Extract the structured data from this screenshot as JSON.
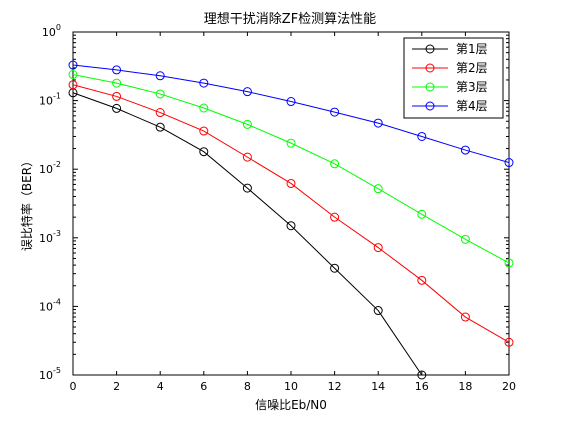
{
  "chart_data": {
    "type": "line",
    "title": "理想干扰消除ZF检测算法性能",
    "xlabel": "信噪比Eb/N0",
    "ylabel": "误比特率（BER）",
    "xlim": [
      0,
      20
    ],
    "ylim": [
      1e-05,
      1
    ],
    "yscale": "log",
    "grid": false,
    "legend_position": "top-right",
    "x_ticks": [
      "0",
      "2",
      "4",
      "6",
      "8",
      "10",
      "12",
      "14",
      "16",
      "18",
      "20"
    ],
    "y_tick_mantissa": [
      "10",
      "10",
      "10",
      "10",
      "10",
      "10"
    ],
    "y_tick_exponents": [
      "-5",
      "-4",
      "-3",
      "-2",
      "-1",
      "0"
    ],
    "series": [
      {
        "name": "第1层",
        "color": "#000000",
        "marker": "circle",
        "x": [
          0,
          2,
          4,
          6,
          8,
          10,
          12,
          14,
          16
        ],
        "y": [
          0.13,
          0.077,
          0.041,
          0.018,
          0.0053,
          0.0015,
          0.00036,
          8.7e-05,
          1e-05
        ]
      },
      {
        "name": "第2层",
        "color": "#ff0000",
        "marker": "circle",
        "x": [
          0,
          2,
          4,
          6,
          8,
          10,
          12,
          14,
          16,
          18,
          20
        ],
        "y": [
          0.17,
          0.115,
          0.067,
          0.036,
          0.015,
          0.0062,
          0.002,
          0.00072,
          0.00024,
          7e-05,
          3e-05
        ]
      },
      {
        "name": "第3层",
        "color": "#00ff00",
        "marker": "circle",
        "x": [
          0,
          2,
          4,
          6,
          8,
          10,
          12,
          14,
          16,
          18,
          20
        ],
        "y": [
          0.24,
          0.18,
          0.125,
          0.078,
          0.045,
          0.024,
          0.012,
          0.0052,
          0.0022,
          0.00095,
          0.00043
        ]
      },
      {
        "name": "第4层",
        "color": "#0000ff",
        "marker": "circle",
        "x": [
          0,
          2,
          4,
          6,
          8,
          10,
          12,
          14,
          16,
          18,
          20
        ],
        "y": [
          0.33,
          0.28,
          0.23,
          0.18,
          0.135,
          0.097,
          0.068,
          0.047,
          0.03,
          0.019,
          0.0125
        ]
      }
    ]
  }
}
